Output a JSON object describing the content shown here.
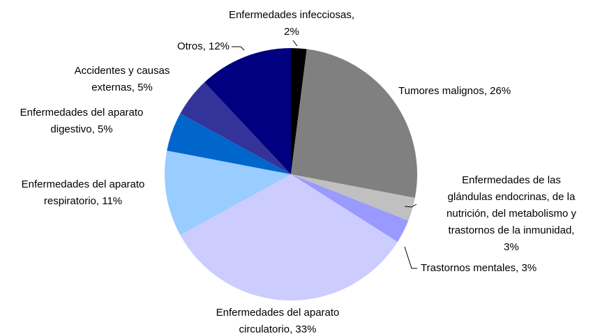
{
  "chart_data": {
    "type": "pie",
    "categories": [
      "Enfermedades infecciosas, 2%",
      "Tumores malignos, 26%",
      "Enfermedades de las glándulas endocrinas, de la nutrición, del metabolismo y trastornos de la inmunidad, 3%",
      "Trastornos mentales, 3%",
      "Enfermedades del aparato circulatorio, 33%",
      "Enfermedades del aparato respiratorio, 11%",
      "Enfermedades del aparato digestivo, 5%",
      "Accidentes y causas externas, 5%",
      "Otros, 12%"
    ],
    "values": [
      2,
      26,
      3,
      3,
      33,
      11,
      5,
      5,
      12
    ],
    "colors": [
      "#000000",
      "#808080",
      "#c0c0c0",
      "#9999ff",
      "#ccccff",
      "#99ccff",
      "#0066cc",
      "#333399",
      "#000080"
    ]
  }
}
